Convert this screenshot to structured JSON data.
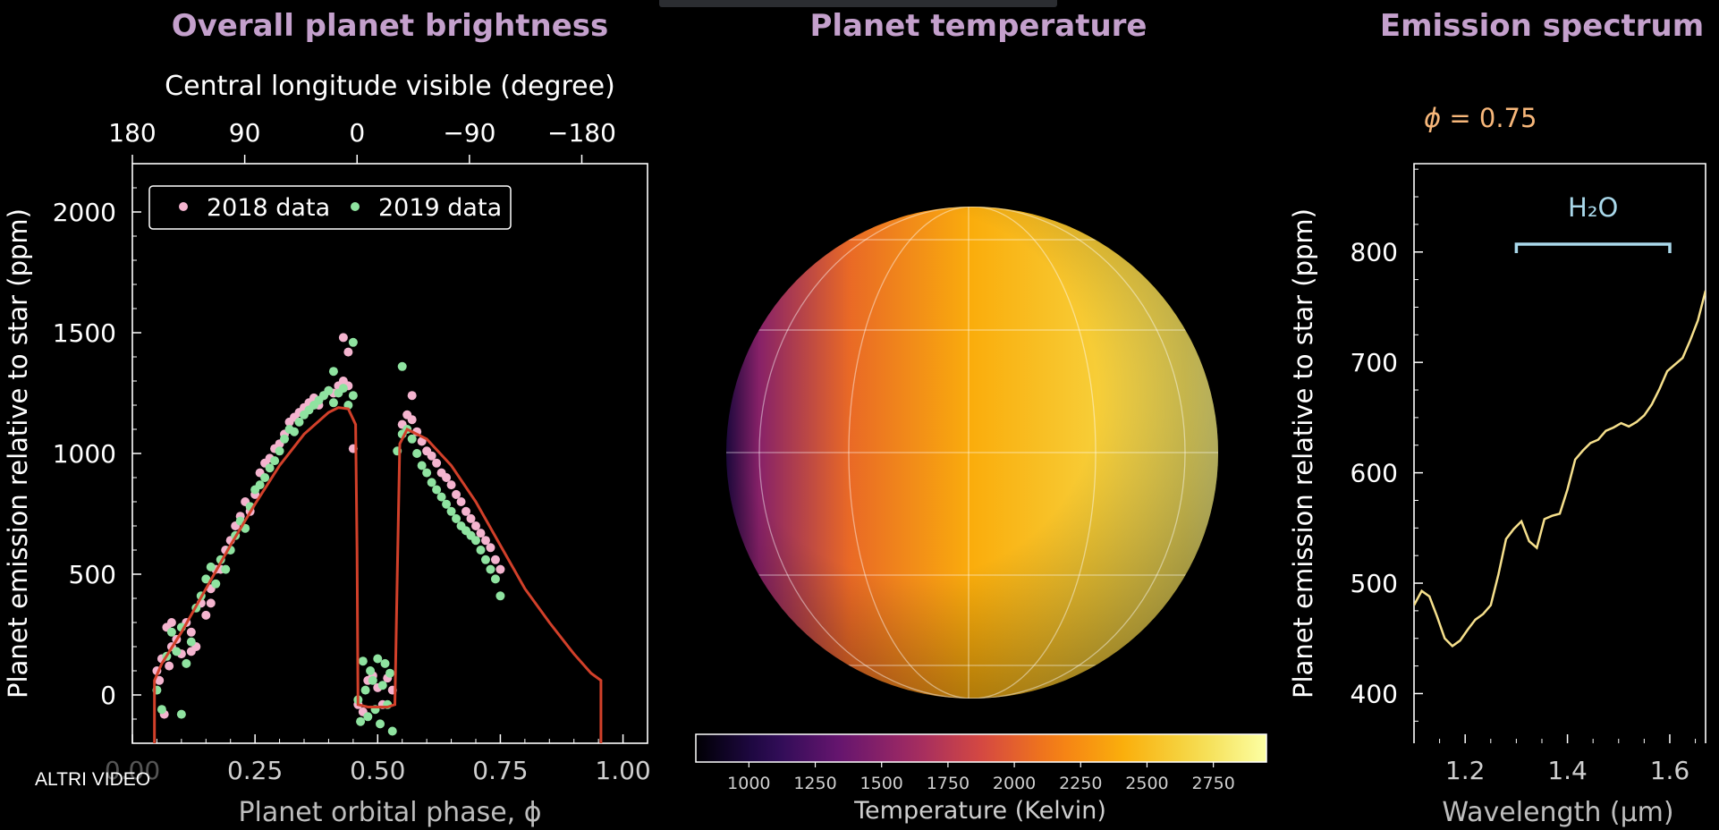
{
  "overlay": {
    "label": "ALTRI VIDEO"
  },
  "panels": {
    "brightness_title": "Overall planet brightness",
    "temperature_title": "Planet temperature",
    "spectrum_title": "Emission spectrum"
  },
  "phase_label": {
    "symbol": "ϕ",
    "text": " = 0.75"
  },
  "colors": {
    "title": "#c4a0cc",
    "model_line": "#d2402a",
    "pts_2018": "#f4b4cf",
    "pts_2019": "#8fe3a0",
    "spectrum_line": "#f6e08c",
    "h2o_marker": "#a9d8ea",
    "phase_label": "#f7b77a"
  },
  "chart_data": [
    {
      "type": "scatter",
      "id": "brightness",
      "title": "Overall planet brightness",
      "xlabel": "Planet orbital phase, ϕ",
      "ylabel": "Planet emission relative to star (ppm)",
      "top_xlabel": "Central longitude visible (degree)",
      "xlim": [
        0.0,
        1.05
      ],
      "ylim": [
        -200,
        2200
      ],
      "xticks": [
        0.0,
        0.25,
        0.5,
        0.75,
        1.0
      ],
      "xtick_labels": [
        "0.00",
        "0.25",
        "0.50",
        "0.75",
        "1.00"
      ],
      "yticks": [
        0,
        500,
        1000,
        1500,
        2000
      ],
      "ytick_labels": [
        "0",
        "500",
        "1000",
        "1500",
        "2000"
      ],
      "top_ticks_phase": [
        0.0,
        0.229,
        0.458,
        0.687,
        0.916
      ],
      "top_tick_labels": [
        "180",
        "90",
        "0",
        "−90",
        "−180"
      ],
      "legend": [
        "2018 data",
        "2019 data"
      ],
      "legend_position": "upper-left",
      "model": {
        "name": "model",
        "x": [
          0.045,
          0.045,
          0.06,
          0.1,
          0.15,
          0.2,
          0.25,
          0.3,
          0.35,
          0.4,
          0.42,
          0.44,
          0.455,
          0.458,
          0.46,
          0.48,
          0.5,
          0.52,
          0.535,
          0.54,
          0.545,
          0.56,
          0.6,
          0.65,
          0.7,
          0.75,
          0.8,
          0.85,
          0.9,
          0.935,
          0.955,
          0.955
        ],
        "y": [
          -200,
          60,
          130,
          260,
          440,
          620,
          790,
          950,
          1080,
          1170,
          1190,
          1185,
          1120,
          600,
          -40,
          -50,
          -50,
          -50,
          -40,
          500,
          1040,
          1100,
          1060,
          950,
          800,
          620,
          440,
          300,
          170,
          90,
          60,
          -200
        ]
      },
      "series": [
        {
          "name": "2018 data",
          "x": [
            0.05,
            0.055,
            0.06,
            0.065,
            0.07,
            0.075,
            0.08,
            0.09,
            0.1,
            0.11,
            0.12,
            0.13,
            0.14,
            0.15,
            0.16,
            0.17,
            0.18,
            0.19,
            0.2,
            0.21,
            0.22,
            0.23,
            0.24,
            0.25,
            0.26,
            0.27,
            0.28,
            0.29,
            0.3,
            0.31,
            0.32,
            0.33,
            0.34,
            0.35,
            0.36,
            0.37,
            0.38,
            0.39,
            0.4,
            0.41,
            0.42,
            0.43,
            0.44,
            0.45,
            0.46,
            0.47,
            0.48,
            0.49,
            0.5,
            0.51,
            0.52,
            0.53,
            0.55,
            0.56,
            0.57,
            0.58,
            0.59,
            0.6,
            0.61,
            0.62,
            0.63,
            0.64,
            0.65,
            0.66,
            0.67,
            0.68,
            0.69,
            0.7,
            0.71,
            0.72,
            0.73,
            0.74,
            0.75,
            0.43,
            0.44,
            0.57,
            0.08,
            0.12,
            0.16
          ],
          "y": [
            100,
            60,
            150,
            -80,
            280,
            120,
            300,
            230,
            170,
            300,
            260,
            200,
            380,
            330,
            440,
            520,
            520,
            600,
            640,
            700,
            740,
            800,
            760,
            830,
            920,
            960,
            980,
            1020,
            1040,
            1080,
            1130,
            1150,
            1170,
            1190,
            1210,
            1230,
            1200,
            1240,
            1260,
            1250,
            1280,
            1300,
            1280,
            1020,
            -40,
            -70,
            60,
            80,
            30,
            -40,
            70,
            20,
            1120,
            1160,
            1140,
            1090,
            1050,
            1010,
            990,
            960,
            920,
            900,
            870,
            830,
            800,
            760,
            730,
            700,
            670,
            640,
            610,
            560,
            520,
            1480,
            1420,
            1240,
            200,
            180,
            380
          ]
        },
        {
          "name": "2019 data",
          "x": [
            0.05,
            0.06,
            0.07,
            0.08,
            0.09,
            0.1,
            0.11,
            0.12,
            0.13,
            0.14,
            0.15,
            0.16,
            0.17,
            0.18,
            0.19,
            0.2,
            0.21,
            0.22,
            0.23,
            0.24,
            0.25,
            0.26,
            0.27,
            0.28,
            0.29,
            0.3,
            0.31,
            0.32,
            0.33,
            0.34,
            0.35,
            0.36,
            0.37,
            0.38,
            0.39,
            0.4,
            0.41,
            0.42,
            0.43,
            0.44,
            0.45,
            0.46,
            0.465,
            0.47,
            0.475,
            0.48,
            0.485,
            0.49,
            0.495,
            0.5,
            0.505,
            0.51,
            0.515,
            0.52,
            0.525,
            0.53,
            0.54,
            0.55,
            0.56,
            0.57,
            0.58,
            0.59,
            0.6,
            0.61,
            0.62,
            0.63,
            0.64,
            0.65,
            0.66,
            0.67,
            0.68,
            0.69,
            0.7,
            0.71,
            0.72,
            0.73,
            0.74,
            0.75,
            0.55,
            0.45,
            0.41,
            0.1
          ],
          "y": [
            20,
            -60,
            160,
            260,
            180,
            280,
            130,
            220,
            360,
            410,
            480,
            530,
            460,
            560,
            520,
            600,
            660,
            720,
            690,
            780,
            850,
            870,
            900,
            940,
            970,
            1010,
            1060,
            1100,
            1090,
            1130,
            1160,
            1180,
            1200,
            1220,
            1240,
            1260,
            1210,
            1250,
            1270,
            1200,
            1240,
            -20,
            -110,
            140,
            20,
            -90,
            100,
            60,
            -60,
            150,
            -120,
            40,
            130,
            -40,
            90,
            -150,
            1010,
            1080,
            1100,
            1060,
            1000,
            950,
            920,
            880,
            850,
            820,
            790,
            760,
            730,
            700,
            680,
            660,
            640,
            600,
            560,
            520,
            480,
            410,
            1360,
            1460,
            1340,
            -80
          ]
        }
      ]
    },
    {
      "type": "heatmap",
      "id": "temperature",
      "title": "Planet temperature",
      "colorbar_label": "Temperature (Kelvin)",
      "colorbar_range": [
        800,
        2950
      ],
      "colorbar_ticks": [
        1000,
        1250,
        1500,
        1750,
        2000,
        2250,
        2500,
        2750
      ],
      "colorbar_tick_labels": [
        "1000",
        "1250",
        "1500",
        "1750",
        "2000",
        "2250",
        "2500",
        "2750"
      ],
      "colormap": "inferno",
      "temperature_profile_by_longitude": {
        "lon_deg": [
          -90,
          -60,
          -30,
          0,
          30,
          60,
          90
        ],
        "temp_K": [
          1000,
          1500,
          2050,
          2400,
          2600,
          2750,
          2850
        ]
      }
    },
    {
      "type": "line",
      "id": "spectrum",
      "title": "Emission spectrum",
      "xlabel": "Wavelength (µm)",
      "ylabel": "Planet emission relative to star (ppm)",
      "xlim": [
        1.1,
        1.67
      ],
      "ylim": [
        355,
        880
      ],
      "xticks": [
        1.2,
        1.4,
        1.6
      ],
      "xtick_labels": [
        "1.2",
        "1.4",
        "1.6"
      ],
      "yticks": [
        400,
        500,
        600,
        700,
        800
      ],
      "ytick_labels": [
        "400",
        "500",
        "600",
        "700",
        "800"
      ],
      "annotation": {
        "text": "H₂O",
        "x_start": 1.3,
        "x_end": 1.6
      },
      "series": [
        {
          "name": "ϕ = 0.75",
          "x": [
            1.1,
            1.115,
            1.13,
            1.145,
            1.16,
            1.175,
            1.19,
            1.205,
            1.22,
            1.235,
            1.25,
            1.265,
            1.28,
            1.295,
            1.31,
            1.325,
            1.34,
            1.355,
            1.37,
            1.385,
            1.4,
            1.415,
            1.43,
            1.445,
            1.46,
            1.475,
            1.49,
            1.505,
            1.52,
            1.535,
            1.55,
            1.565,
            1.58,
            1.595,
            1.61,
            1.625,
            1.64,
            1.655,
            1.67
          ],
          "y": [
            480,
            493,
            488,
            470,
            450,
            443,
            448,
            458,
            467,
            472,
            480,
            508,
            540,
            549,
            556,
            538,
            532,
            558,
            561,
            563,
            585,
            612,
            620,
            627,
            630,
            638,
            641,
            645,
            642,
            646,
            652,
            662,
            676,
            692,
            698,
            704,
            720,
            738,
            765
          ]
        }
      ]
    }
  ]
}
